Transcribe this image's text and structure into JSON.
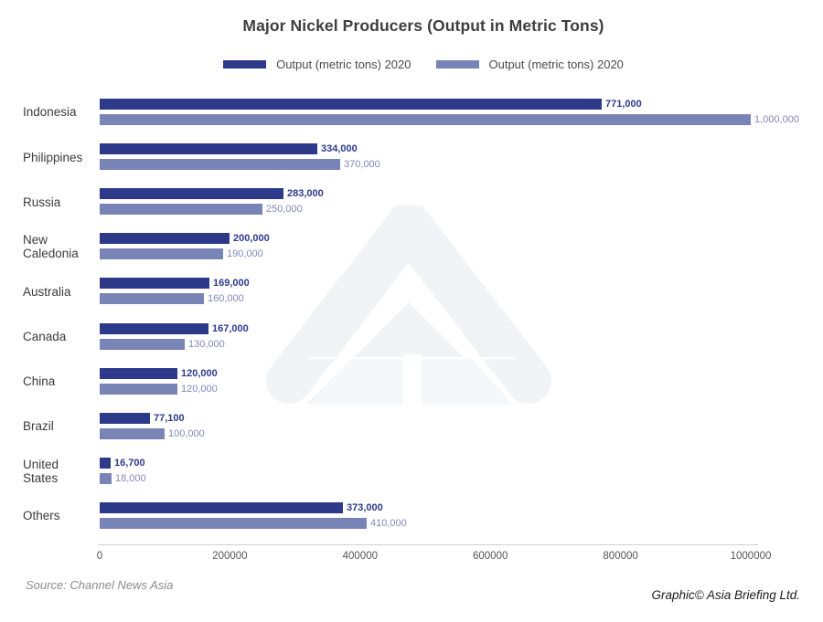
{
  "title": "Major Nickel Producers (Output in Metric Tons)",
  "legend": [
    {
      "label": "Output (metric tons) 2020",
      "color": "#2d3a8a"
    },
    {
      "label": "Output (metric tons) 2020",
      "color": "#7884b5"
    }
  ],
  "chart_data": {
    "type": "bar",
    "orientation": "horizontal",
    "title": "Major Nickel Producers (Output in Metric Tons)",
    "categories": [
      "Indonesia",
      "Philippines",
      "Russia",
      "New Caledonia",
      "Australia",
      "Canada",
      "China",
      "Brazil",
      "United States",
      "Others"
    ],
    "category_display": [
      "Indonesia",
      "Philippines",
      "Russia",
      "New\nCaledonia",
      "Australia",
      "Canada",
      "China",
      "Brazil",
      "United\nStates",
      "Others"
    ],
    "series": [
      {
        "name": "Output (metric tons) 2020",
        "color": "#2d3a8a",
        "label_color": "#2d3a8a",
        "values": [
          771000,
          334000,
          283000,
          200000,
          169000,
          167000,
          120000,
          77100,
          16700,
          373000
        ]
      },
      {
        "name": "Output (metric tons) 2020",
        "color": "#7884b5",
        "label_color": "#8089ba",
        "values": [
          1000000,
          370000,
          250000,
          190000,
          160000,
          130000,
          120000,
          100000,
          18000,
          410000
        ]
      }
    ],
    "xlabel": "",
    "ylabel": "",
    "xlim": [
      0,
      1000000
    ],
    "x_ticks": [
      0,
      200000,
      400000,
      600000,
      800000,
      1000000
    ],
    "value_labels": true,
    "grid": false,
    "legend_position": "top"
  },
  "footer": {
    "source": "Source: Channel News Asia",
    "credit": "Graphic© Asia Briefing Ltd."
  },
  "watermark": {
    "name": "asia-briefing-logo",
    "color": "#f2f3f6",
    "block_color": "#f6f7fa"
  }
}
